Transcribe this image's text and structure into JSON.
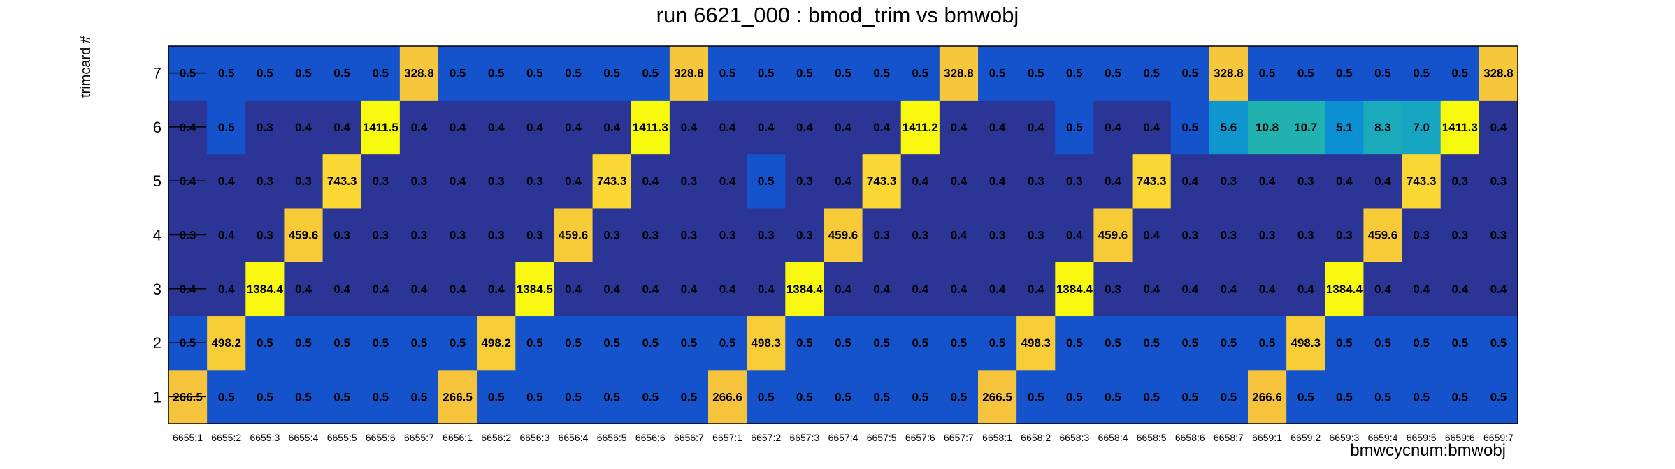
{
  "chart_data": {
    "type": "heatmap",
    "title": "run 6621_000 : bmod_trim vs bmwobj",
    "xlabel": "bmwcycnum:bmwobj",
    "ylabel": "trimcard #",
    "x_categories": [
      "6655:1",
      "6655:2",
      "6655:3",
      "6655:4",
      "6655:5",
      "6655:6",
      "6655:7",
      "6656:1",
      "6656:2",
      "6656:3",
      "6656:4",
      "6656:5",
      "6656:6",
      "6656:7",
      "6657:1",
      "6657:2",
      "6657:3",
      "6657:4",
      "6657:5",
      "6657:6",
      "6657:7",
      "6658:1",
      "6658:2",
      "6658:3",
      "6658:4",
      "6658:5",
      "6658:6",
      "6658:7",
      "6659:1",
      "6659:2",
      "6659:3",
      "6659:4",
      "6659:5",
      "6659:6",
      "6659:7"
    ],
    "y_categories": [
      "1",
      "2",
      "3",
      "4",
      "5",
      "6",
      "7"
    ],
    "grid": false,
    "legend": "none",
    "colorscale": [
      {
        "value": 0.3,
        "color": "#2a3596"
      },
      {
        "value": 0.4,
        "color": "#2a3596"
      },
      {
        "value": 0.5,
        "color": "#1453cc"
      },
      {
        "value": 5.0,
        "color": "#0b8fd4"
      },
      {
        "value": 7.0,
        "color": "#17a6c2"
      },
      {
        "value": 11.0,
        "color": "#22b2ae"
      },
      {
        "value": 260,
        "color": "#f5c33c"
      },
      {
        "value": 1000,
        "color": "#fce22e"
      },
      {
        "value": 1420,
        "color": "#f8fa0d"
      }
    ],
    "rows": [
      {
        "y": "1",
        "values": [
          266.5,
          0.5,
          0.5,
          0.5,
          0.5,
          0.5,
          0.5,
          266.5,
          0.5,
          0.5,
          0.5,
          0.5,
          0.5,
          0.5,
          266.6,
          0.5,
          0.5,
          0.5,
          0.5,
          0.5,
          0.5,
          266.5,
          0.5,
          0.5,
          0.5,
          0.5,
          0.5,
          0.5,
          266.6,
          0.5,
          0.5,
          0.5,
          0.5,
          0.5,
          0.5
        ]
      },
      {
        "y": "2",
        "values": [
          0.5,
          498.2,
          0.5,
          0.5,
          0.5,
          0.5,
          0.5,
          0.5,
          498.2,
          0.5,
          0.5,
          0.5,
          0.5,
          0.5,
          0.5,
          498.3,
          0.5,
          0.5,
          0.5,
          0.5,
          0.5,
          0.5,
          498.3,
          0.5,
          0.5,
          0.5,
          0.5,
          0.5,
          0.5,
          498.3,
          0.5,
          0.5,
          0.5,
          0.5,
          0.5
        ]
      },
      {
        "y": "3",
        "values": [
          0.4,
          0.4,
          1384.4,
          0.4,
          0.4,
          0.4,
          0.4,
          0.4,
          0.4,
          1384.5,
          0.4,
          0.4,
          0.4,
          0.4,
          0.4,
          0.4,
          1384.4,
          0.4,
          0.4,
          0.4,
          0.4,
          0.4,
          0.4,
          1384.4,
          0.3,
          0.4,
          0.4,
          0.4,
          0.4,
          0.4,
          1384.4,
          0.4,
          0.4,
          0.4,
          0.4
        ]
      },
      {
        "y": "4",
        "values": [
          0.3,
          0.4,
          0.3,
          459.6,
          0.3,
          0.3,
          0.3,
          0.3,
          0.3,
          0.3,
          459.6,
          0.3,
          0.3,
          0.3,
          0.3,
          0.3,
          0.3,
          459.6,
          0.3,
          0.3,
          0.4,
          0.3,
          0.3,
          0.4,
          459.6,
          0.4,
          0.3,
          0.3,
          0.3,
          0.3,
          0.3,
          459.6,
          0.3,
          0.3,
          0.3
        ]
      },
      {
        "y": "5",
        "values": [
          0.4,
          0.4,
          0.3,
          0.3,
          743.3,
          0.3,
          0.3,
          0.4,
          0.3,
          0.3,
          0.4,
          743.3,
          0.4,
          0.3,
          0.4,
          0.5,
          0.3,
          0.4,
          743.3,
          0.4,
          0.4,
          0.4,
          0.3,
          0.3,
          0.4,
          743.3,
          0.4,
          0.3,
          0.4,
          0.3,
          0.4,
          0.4,
          743.3,
          0.3,
          0.3
        ]
      },
      {
        "y": "6",
        "values": [
          0.4,
          0.5,
          0.3,
          0.4,
          0.4,
          1411.5,
          0.4,
          0.4,
          0.4,
          0.4,
          0.4,
          0.4,
          1411.3,
          0.4,
          0.4,
          0.4,
          0.4,
          0.4,
          0.4,
          1411.2,
          0.4,
          0.4,
          0.4,
          0.5,
          0.4,
          0.4,
          0.5,
          5.6,
          10.8,
          10.7,
          5.1,
          8.3,
          7.0,
          1411.3,
          0.4
        ]
      },
      {
        "y": "7",
        "values": [
          0.5,
          0.5,
          0.5,
          0.5,
          0.5,
          0.5,
          328.8,
          0.5,
          0.5,
          0.5,
          0.5,
          0.5,
          0.5,
          328.8,
          0.5,
          0.5,
          0.5,
          0.5,
          0.5,
          0.5,
          328.8,
          0.5,
          0.5,
          0.5,
          0.5,
          0.5,
          0.5,
          328.8,
          0.5,
          0.5,
          0.5,
          0.5,
          0.5,
          0.5,
          328.8
        ]
      }
    ]
  }
}
